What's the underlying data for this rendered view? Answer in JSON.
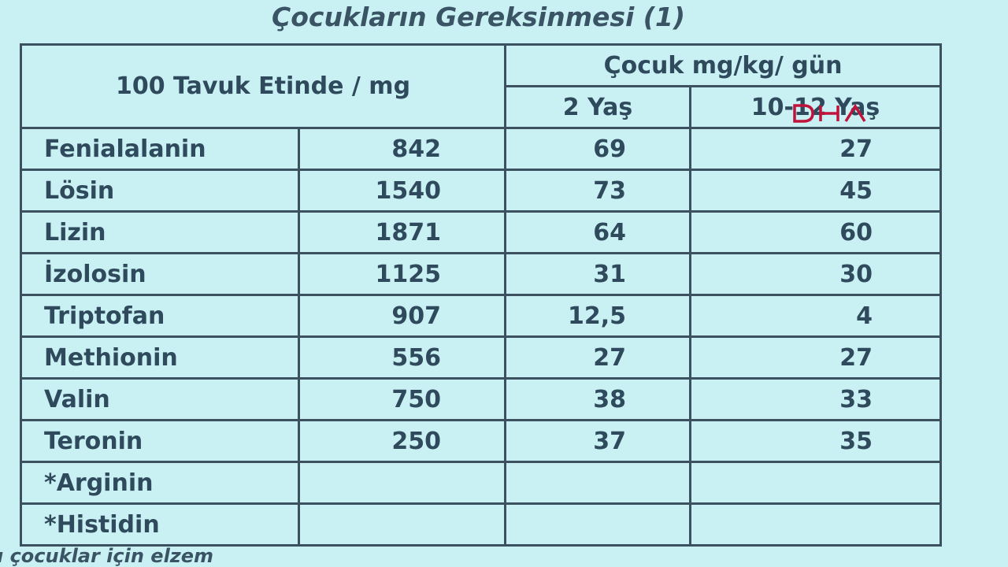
{
  "title": "Çocukların Gereksinmesi (1)",
  "table": {
    "header_left": "100 Tavuk Etinde / mg",
    "header_group": "Çocuk mg/kg/ gün",
    "header_col_2yas": "2 Yaş",
    "header_col_1012yas": "10-12 Yaş",
    "rows": [
      {
        "name": "Fenialalanin",
        "mg": "842",
        "yas2": "69",
        "yas1012": "27"
      },
      {
        "name": "Lösin",
        "mg": "1540",
        "yas2": "73",
        "yas1012": "45"
      },
      {
        "name": "Lizin",
        "mg": "1871",
        "yas2": "64",
        "yas1012": "60"
      },
      {
        "name": "İzolosin",
        "mg": "1125",
        "yas2": "31",
        "yas1012": "30"
      },
      {
        "name": "Triptofan",
        "mg": "907",
        "yas2": "12,5",
        "yas1012": "4"
      },
      {
        "name": "Methionin",
        "mg": "556",
        "yas2": "27",
        "yas1012": "27"
      },
      {
        "name": "Valin",
        "mg": "750",
        "yas2": "38",
        "yas1012": "33"
      },
      {
        "name": "Teronin",
        "mg": "250",
        "yas2": "37",
        "yas1012": "35"
      },
      {
        "name": "*Arginin",
        "mg": "",
        "yas2": "",
        "yas1012": ""
      },
      {
        "name": "*Histidin",
        "mg": "",
        "yas2": "",
        "yas1012": ""
      }
    ]
  },
  "footnote": "ı çocuklar için elzem",
  "watermark": "DHA",
  "colors": {
    "background": "#c9f1f3",
    "text": "#2f4a5c",
    "watermark": "#c0123a"
  }
}
